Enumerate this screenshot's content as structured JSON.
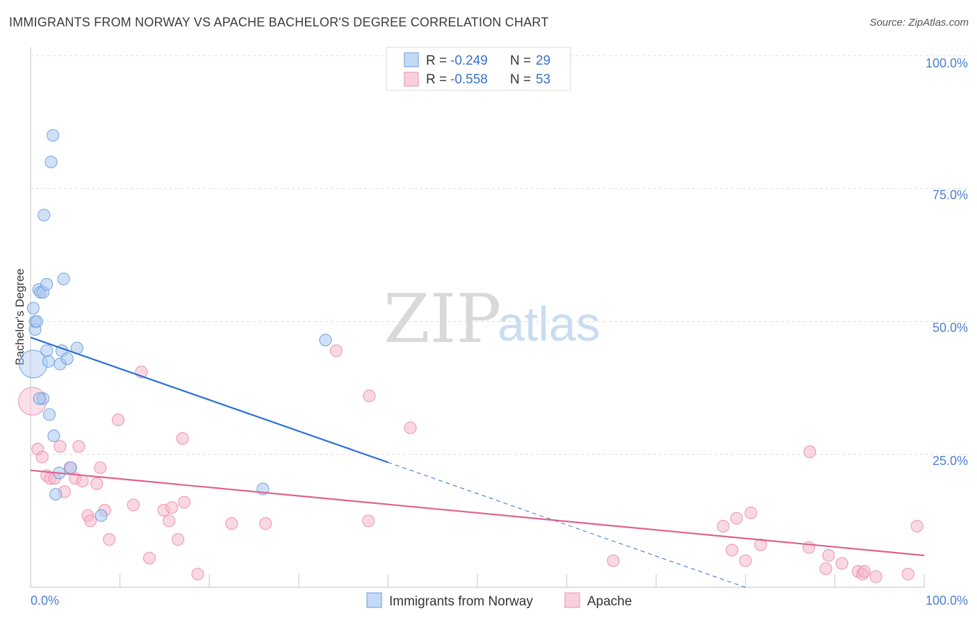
{
  "title": "IMMIGRANTS FROM NORWAY VS APACHE BACHELOR'S DEGREE CORRELATION CHART",
  "source": "Source: ZipAtlas.com",
  "watermark": {
    "zip": "ZIP",
    "atlas": "atlas"
  },
  "legend": {
    "rows": [
      {
        "r_label": "R =",
        "r_value": "-0.249",
        "n_label": "N =",
        "n_value": "29"
      },
      {
        "r_label": "R =",
        "r_value": "-0.558",
        "n_label": "N =",
        "n_value": "53"
      }
    ]
  },
  "chart_data": {
    "type": "scatter",
    "title": "IMMIGRANTS FROM NORWAY VS APACHE BACHELOR'S DEGREE CORRELATION CHART",
    "xlabel": "",
    "ylabel": "Bachelor's Degree",
    "xlim": [
      0,
      100
    ],
    "ylim": [
      0,
      100
    ],
    "x_tick_labels": [
      "0.0%",
      "100.0%"
    ],
    "y_ticks": [
      25,
      50,
      75,
      100
    ],
    "y_tick_labels": [
      "25.0%",
      "50.0%",
      "75.0%",
      "100.0%"
    ],
    "colors": {
      "norway": "#a9c8f0",
      "norway_edge": "#6f9fde",
      "norway_line": "#2a6fd6",
      "apache": "#f6b8cb",
      "apache_edge": "#ec8fac",
      "apache_line": "#e0608c"
    },
    "series": [
      {
        "name": "Immigrants from Norway",
        "r": -0.249,
        "n": 29,
        "trend": {
          "x1": 0,
          "y1": 47.0,
          "x2": 40,
          "y2": 23.5,
          "dash_to_x": 80,
          "dash_to_y": 0
        },
        "points": [
          {
            "x": 0.3,
            "y": 42.0,
            "big": true
          },
          {
            "x": 0.3,
            "y": 52.5
          },
          {
            "x": 0.5,
            "y": 48.5
          },
          {
            "x": 0.5,
            "y": 50.0
          },
          {
            "x": 0.7,
            "y": 50.0
          },
          {
            "x": 0.9,
            "y": 56.0
          },
          {
            "x": 1.1,
            "y": 55.5
          },
          {
            "x": 1.4,
            "y": 55.5
          },
          {
            "x": 1.8,
            "y": 57.0
          },
          {
            "x": 1.8,
            "y": 44.5
          },
          {
            "x": 2.0,
            "y": 42.5
          },
          {
            "x": 1.4,
            "y": 35.5
          },
          {
            "x": 1.0,
            "y": 35.5
          },
          {
            "x": 2.1,
            "y": 32.5
          },
          {
            "x": 2.6,
            "y": 28.5
          },
          {
            "x": 2.3,
            "y": 80.0
          },
          {
            "x": 2.5,
            "y": 85.0
          },
          {
            "x": 1.5,
            "y": 70.0
          },
          {
            "x": 3.7,
            "y": 58.0
          },
          {
            "x": 3.3,
            "y": 42.0
          },
          {
            "x": 3.5,
            "y": 44.5
          },
          {
            "x": 4.1,
            "y": 43.0
          },
          {
            "x": 5.2,
            "y": 45.0
          },
          {
            "x": 4.5,
            "y": 22.5
          },
          {
            "x": 3.2,
            "y": 21.5
          },
          {
            "x": 2.8,
            "y": 17.5
          },
          {
            "x": 7.9,
            "y": 13.5
          },
          {
            "x": 26.0,
            "y": 18.5
          },
          {
            "x": 33.0,
            "y": 46.5
          }
        ]
      },
      {
        "name": "Apache",
        "r": -0.558,
        "n": 53,
        "trend": {
          "x1": 0,
          "y1": 22.0,
          "x2": 100,
          "y2": 6.0
        },
        "points": [
          {
            "x": 0.2,
            "y": 35.0,
            "big": true
          },
          {
            "x": 0.8,
            "y": 26.0
          },
          {
            "x": 1.3,
            "y": 24.5
          },
          {
            "x": 1.8,
            "y": 21.0
          },
          {
            "x": 2.2,
            "y": 20.5
          },
          {
            "x": 2.7,
            "y": 20.5
          },
          {
            "x": 3.3,
            "y": 26.5
          },
          {
            "x": 3.8,
            "y": 18.0
          },
          {
            "x": 4.4,
            "y": 22.5
          },
          {
            "x": 5.0,
            "y": 20.5
          },
          {
            "x": 5.4,
            "y": 26.5
          },
          {
            "x": 5.8,
            "y": 20.0
          },
          {
            "x": 6.4,
            "y": 13.5
          },
          {
            "x": 6.7,
            "y": 12.5
          },
          {
            "x": 7.4,
            "y": 19.5
          },
          {
            "x": 7.8,
            "y": 22.5
          },
          {
            "x": 8.3,
            "y": 14.5
          },
          {
            "x": 8.8,
            "y": 9.0
          },
          {
            "x": 9.8,
            "y": 31.5
          },
          {
            "x": 11.5,
            "y": 15.5
          },
          {
            "x": 12.4,
            "y": 40.5
          },
          {
            "x": 13.3,
            "y": 5.5
          },
          {
            "x": 14.9,
            "y": 14.5
          },
          {
            "x": 15.5,
            "y": 12.5
          },
          {
            "x": 15.8,
            "y": 15.0
          },
          {
            "x": 16.5,
            "y": 9.0
          },
          {
            "x": 17.0,
            "y": 28.0
          },
          {
            "x": 17.2,
            "y": 16.0
          },
          {
            "x": 18.7,
            "y": 2.5
          },
          {
            "x": 22.5,
            "y": 12.0
          },
          {
            "x": 26.3,
            "y": 12.0
          },
          {
            "x": 34.2,
            "y": 44.5
          },
          {
            "x": 37.8,
            "y": 12.5
          },
          {
            "x": 37.9,
            "y": 36.0
          },
          {
            "x": 42.5,
            "y": 30.0
          },
          {
            "x": 65.2,
            "y": 5.0
          },
          {
            "x": 77.5,
            "y": 11.5
          },
          {
            "x": 78.5,
            "y": 7.0
          },
          {
            "x": 79.0,
            "y": 13.0
          },
          {
            "x": 80.0,
            "y": 5.0
          },
          {
            "x": 80.6,
            "y": 14.0
          },
          {
            "x": 81.7,
            "y": 8.0
          },
          {
            "x": 87.2,
            "y": 25.5
          },
          {
            "x": 87.1,
            "y": 7.5
          },
          {
            "x": 89.0,
            "y": 3.5
          },
          {
            "x": 89.3,
            "y": 6.0
          },
          {
            "x": 90.8,
            "y": 4.5
          },
          {
            "x": 92.6,
            "y": 3.0
          },
          {
            "x": 93.1,
            "y": 2.5
          },
          {
            "x": 93.3,
            "y": 3.0
          },
          {
            "x": 94.6,
            "y": 2.0
          },
          {
            "x": 98.2,
            "y": 2.5
          },
          {
            "x": 99.2,
            "y": 11.5
          }
        ]
      }
    ]
  }
}
